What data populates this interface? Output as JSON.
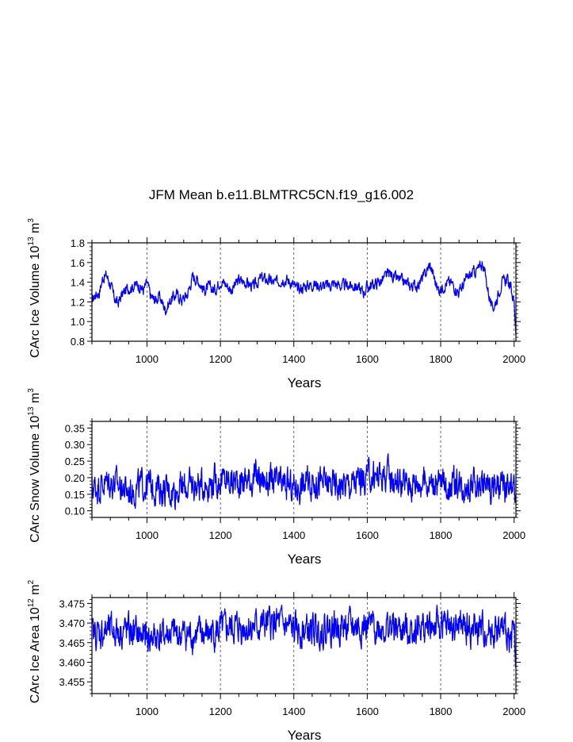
{
  "chart_data": [
    {
      "type": "line",
      "title": "JFM Mean b.e11.BLMTRC5CN.f19_g16.002",
      "xlabel": "Years",
      "ylabel": {
        "pre": "CArc Ice Volume 10",
        "exp": "13",
        "mid": " m",
        "unit_exp": "3"
      },
      "xlim": [
        850,
        2005
      ],
      "ylim": [
        0.8,
        1.8
      ],
      "xticks": [
        "1000",
        "1200",
        "1400",
        "1600",
        "1800",
        "2000"
      ],
      "yticks": [
        "0.8",
        "1.0",
        "1.2",
        "1.4",
        "1.6",
        "1.8"
      ],
      "series": [
        {
          "name": "CArc Ice Volume",
          "color": "#0000ff",
          "keypoints": [
            [
              850,
              1.2
            ],
            [
              860,
              1.28
            ],
            [
              870,
              1.3
            ],
            [
              880,
              1.45
            ],
            [
              890,
              1.47
            ],
            [
              900,
              1.38
            ],
            [
              910,
              1.25
            ],
            [
              920,
              1.18
            ],
            [
              930,
              1.26
            ],
            [
              945,
              1.33
            ],
            [
              960,
              1.36
            ],
            [
              975,
              1.38
            ],
            [
              990,
              1.32
            ],
            [
              1000,
              1.39
            ],
            [
              1010,
              1.26
            ],
            [
              1020,
              1.22
            ],
            [
              1035,
              1.25
            ],
            [
              1050,
              1.12
            ],
            [
              1065,
              1.22
            ],
            [
              1080,
              1.28
            ],
            [
              1095,
              1.22
            ],
            [
              1110,
              1.28
            ],
            [
              1125,
              1.46
            ],
            [
              1140,
              1.42
            ],
            [
              1155,
              1.32
            ],
            [
              1170,
              1.35
            ],
            [
              1185,
              1.32
            ],
            [
              1200,
              1.42
            ],
            [
              1215,
              1.38
            ],
            [
              1230,
              1.32
            ],
            [
              1250,
              1.42
            ],
            [
              1270,
              1.4
            ],
            [
              1290,
              1.35
            ],
            [
              1310,
              1.44
            ],
            [
              1330,
              1.42
            ],
            [
              1350,
              1.39
            ],
            [
              1370,
              1.44
            ],
            [
              1390,
              1.41
            ],
            [
              1410,
              1.32
            ],
            [
              1430,
              1.36
            ],
            [
              1450,
              1.38
            ],
            [
              1470,
              1.37
            ],
            [
              1490,
              1.36
            ],
            [
              1510,
              1.39
            ],
            [
              1530,
              1.36
            ],
            [
              1550,
              1.37
            ],
            [
              1570,
              1.36
            ],
            [
              1590,
              1.3
            ],
            [
              1600,
              1.35
            ],
            [
              1620,
              1.38
            ],
            [
              1640,
              1.42
            ],
            [
              1660,
              1.49
            ],
            [
              1680,
              1.43
            ],
            [
              1700,
              1.4
            ],
            [
              1720,
              1.36
            ],
            [
              1740,
              1.38
            ],
            [
              1755,
              1.46
            ],
            [
              1770,
              1.58
            ],
            [
              1780,
              1.48
            ],
            [
              1790,
              1.34
            ],
            [
              1800,
              1.32
            ],
            [
              1815,
              1.4
            ],
            [
              1830,
              1.39
            ],
            [
              1850,
              1.3
            ],
            [
              1870,
              1.43
            ],
            [
              1890,
              1.5
            ],
            [
              1905,
              1.54
            ],
            [
              1915,
              1.6
            ],
            [
              1925,
              1.4
            ],
            [
              1940,
              1.12
            ],
            [
              1950,
              1.2
            ],
            [
              1965,
              1.38
            ],
            [
              1980,
              1.43
            ],
            [
              1990,
              1.36
            ],
            [
              2000,
              1.2
            ],
            [
              2005,
              0.9
            ]
          ],
          "noise_amplitude": 0.05
        }
      ]
    },
    {
      "type": "line",
      "xlabel": "Years",
      "ylabel": {
        "pre": "CArc Snow Volume 10",
        "exp": "13",
        "mid": " m",
        "unit_exp": "3"
      },
      "xlim": [
        850,
        2005
      ],
      "ylim": [
        0.08,
        0.37
      ],
      "xticks": [
        "1000",
        "1200",
        "1400",
        "1600",
        "1800",
        "2000"
      ],
      "yticks": [
        "0.10",
        "0.15",
        "0.20",
        "0.25",
        "0.30",
        "0.35"
      ],
      "series": [
        {
          "name": "CArc Snow Volume",
          "color": "#0000ff",
          "keypoints": [
            [
              850,
              0.17
            ],
            [
              900,
              0.19
            ],
            [
              950,
              0.16
            ],
            [
              1000,
              0.18
            ],
            [
              1050,
              0.16
            ],
            [
              1100,
              0.17
            ],
            [
              1150,
              0.18
            ],
            [
              1200,
              0.19
            ],
            [
              1250,
              0.19
            ],
            [
              1300,
              0.2
            ],
            [
              1350,
              0.18
            ],
            [
              1400,
              0.17
            ],
            [
              1450,
              0.19
            ],
            [
              1500,
              0.18
            ],
            [
              1550,
              0.18
            ],
            [
              1600,
              0.2
            ],
            [
              1650,
              0.21
            ],
            [
              1700,
              0.18
            ],
            [
              1750,
              0.19
            ],
            [
              1800,
              0.18
            ],
            [
              1850,
              0.18
            ],
            [
              1900,
              0.18
            ],
            [
              1950,
              0.17
            ],
            [
              2000,
              0.16
            ],
            [
              2005,
              0.11
            ]
          ],
          "noise_amplitude": 0.04
        }
      ]
    },
    {
      "type": "line",
      "xlabel": "Years",
      "ylabel": {
        "pre": "CArc Ice Area 10",
        "exp": "12",
        "mid": " m",
        "unit_exp": "2"
      },
      "xlim": [
        850,
        2005
      ],
      "ylim": [
        3.452,
        3.4765
      ],
      "xticks": [
        "1000",
        "1200",
        "1400",
        "1600",
        "1800",
        "2000"
      ],
      "yticks": [
        "3.455",
        "3.460",
        "3.465",
        "3.470",
        "3.475"
      ],
      "series": [
        {
          "name": "CArc Ice Area",
          "color": "#0000ff",
          "keypoints": [
            [
              850,
              3.467
            ],
            [
              900,
              3.468
            ],
            [
              950,
              3.468
            ],
            [
              1000,
              3.466
            ],
            [
              1050,
              3.467
            ],
            [
              1100,
              3.467
            ],
            [
              1150,
              3.467
            ],
            [
              1200,
              3.468
            ],
            [
              1250,
              3.469
            ],
            [
              1300,
              3.469
            ],
            [
              1350,
              3.47
            ],
            [
              1400,
              3.468
            ],
            [
              1450,
              3.468
            ],
            [
              1500,
              3.469
            ],
            [
              1550,
              3.469
            ],
            [
              1600,
              3.469
            ],
            [
              1650,
              3.469
            ],
            [
              1700,
              3.468
            ],
            [
              1750,
              3.469
            ],
            [
              1800,
              3.469
            ],
            [
              1850,
              3.469
            ],
            [
              1900,
              3.468
            ],
            [
              1950,
              3.468
            ],
            [
              2000,
              3.467
            ],
            [
              2005,
              3.462
            ]
          ],
          "noise_amplitude": 0.0035
        }
      ]
    }
  ]
}
